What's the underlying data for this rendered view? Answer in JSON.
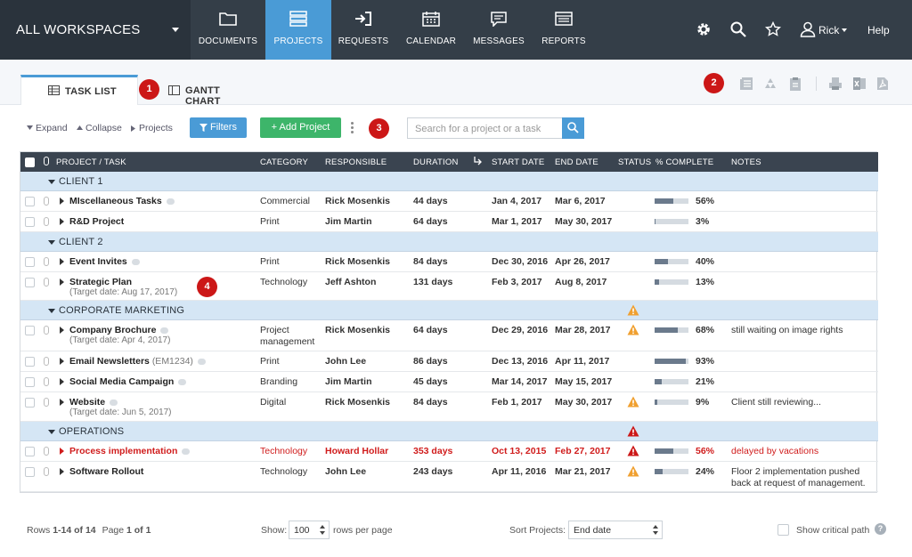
{
  "workspace": {
    "title": "ALL WORKSPACES"
  },
  "nav": {
    "tabs": [
      {
        "label": "DOCUMENTS",
        "icon": "folder-icon"
      },
      {
        "label": "PROJECTS",
        "icon": "projects-icon",
        "active": true
      },
      {
        "label": "REQUESTS",
        "icon": "sign-in-icon"
      },
      {
        "label": "CALENDAR",
        "icon": "calendar-icon"
      },
      {
        "label": "MESSAGES",
        "icon": "message-icon"
      },
      {
        "label": "REPORTS",
        "icon": "report-icon"
      }
    ],
    "user": "Rick",
    "help": "Help"
  },
  "view_tabs": {
    "task_list": "TASK LIST",
    "gantt": "GANTT CHART"
  },
  "callouts": [
    "1",
    "2",
    "3",
    "4"
  ],
  "toolbar": {
    "expand": "Expand",
    "collapse": "Collapse",
    "projects": "Projects",
    "filters": "Filters",
    "add_project": "+ Add Project",
    "search_placeholder": "Search for a project or a task"
  },
  "columns": [
    "PROJECT / TASK",
    "CATEGORY",
    "RESPONSIBLE",
    "DURATION",
    "START DATE",
    "END DATE",
    "STATUS",
    "% COMPLETE",
    "NOTES"
  ],
  "groups": [
    {
      "name": "CLIENT 1",
      "status": ""
    },
    {
      "name": "CLIENT 2",
      "status": ""
    },
    {
      "name": "CORPORATE MARKETING",
      "status": "warning"
    },
    {
      "name": "OPERATIONS",
      "status": "critical"
    }
  ],
  "rows": [
    {
      "name": "MIscellaneous Tasks",
      "category": "Commercial",
      "responsible": "Rick Mosenkis",
      "duration": "44 days",
      "start": "Jan 4, 2017",
      "end": "Mar 6, 2017",
      "complete": 56,
      "complete_label": "56%",
      "notes": ""
    },
    {
      "name": "R&D Project",
      "category": "Print",
      "responsible": "Jim Martin",
      "duration": "64 days",
      "start": "Mar 1, 2017",
      "end": "May 30, 2017",
      "complete": 3,
      "complete_label": "3%",
      "notes": ""
    },
    {
      "name": "Event Invites",
      "category": "Print",
      "responsible": "Rick Mosenkis",
      "duration": "84 days",
      "start": "Dec 30, 2016",
      "end": "Apr 26, 2017",
      "complete": 40,
      "complete_label": "40%",
      "notes": ""
    },
    {
      "name": "Strategic Plan",
      "target": "(Target date: Aug 17, 2017)",
      "category": "Technology",
      "responsible": "Jeff Ashton",
      "duration": "131 days",
      "start": "Feb 3, 2017",
      "end": "Aug 8, 2017",
      "complete": 13,
      "complete_label": "13%",
      "notes": ""
    },
    {
      "name": "Company Brochure",
      "target": "(Target date: Apr 4, 2017)",
      "category": "Project",
      "category2": "management",
      "responsible": "Rick Mosenkis",
      "duration": "64 days",
      "start": "Dec 29, 2016",
      "end": "Mar 28, 2017",
      "status": "warning",
      "complete": 68,
      "complete_label": "68%",
      "notes": "still waiting on image rights"
    },
    {
      "name": "Email Newsletters",
      "tag": "(EM1234)",
      "category": "Print",
      "responsible": "John Lee",
      "duration": "86 days",
      "start": "Dec 13, 2016",
      "end": "Apr 11, 2017",
      "complete": 93,
      "complete_label": "93%",
      "notes": ""
    },
    {
      "name": "Social Media Campaign",
      "category": "Branding",
      "responsible": "Jim Martin",
      "duration": "45 days",
      "start": "Mar 14, 2017",
      "end": "May 15, 2017",
      "complete": 21,
      "complete_label": "21%",
      "notes": ""
    },
    {
      "name": "Website",
      "target": "(Target date: Jun 5, 2017)",
      "category": "Digital",
      "responsible": "Rick Mosenkis",
      "duration": "84 days",
      "start": "Feb 1, 2017",
      "end": "May 30, 2017",
      "status": "warning",
      "complete": 9,
      "complete_label": "9%",
      "notes": "Client still reviewing..."
    },
    {
      "name": "Process implementation",
      "category": "Technology",
      "responsible": "Howard Hollar",
      "duration": "353 days",
      "start": "Oct 13, 2015",
      "end": "Feb 27, 2017",
      "status": "critical",
      "complete": 56,
      "complete_label": "56%",
      "notes": "delayed by vacations",
      "late": true
    },
    {
      "name": "Software Rollout",
      "category": "Technology",
      "responsible": "John Lee",
      "duration": "243 days",
      "start": "Apr 11, 2016",
      "end": "Mar 21, 2017",
      "status": "warning",
      "complete": 24,
      "complete_label": "24%",
      "notes": "Floor 2 implementation pushed",
      "notes2": "back at request of management."
    }
  ],
  "footer": {
    "rows_prefix": "Rows ",
    "rows_range": "1-14 of 14",
    "page_prefix": "Page ",
    "page_range": "1 of 1",
    "show": "Show:",
    "rows_per_page_value": "100",
    "rows_per_page_suffix": "rows per page",
    "sort_label": "Sort Projects:",
    "sort_value": "End date",
    "critical_path": "Show critical path"
  },
  "colors": {
    "nav_bg": "#343e48",
    "accent": "#4a9bd6",
    "green": "#3db56a",
    "danger": "#cc1717",
    "warning": "#f0a030",
    "group_bg": "#d5e6f5"
  }
}
